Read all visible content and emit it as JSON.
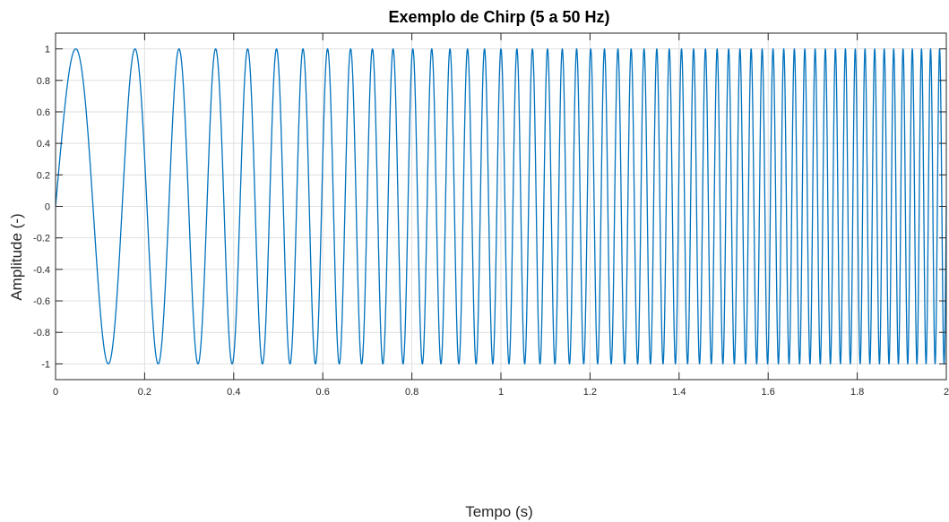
{
  "chart_data": {
    "type": "line",
    "title": "Exemplo de Chirp (5 a 50 Hz)",
    "xlabel": "Tempo (s)",
    "ylabel": "Amplitude (-)",
    "xlim": [
      0,
      2
    ],
    "ylim": [
      -1.1,
      1.1
    ],
    "grid": true,
    "x_ticks": [
      0,
      0.2,
      0.4,
      0.6,
      0.8,
      1,
      1.2,
      1.4,
      1.6,
      1.8,
      2
    ],
    "x_tick_labels": [
      "0",
      "0.2",
      "0.4",
      "0.6",
      "0.8",
      "1",
      "1.2",
      "1.4",
      "1.6",
      "1.8",
      "2"
    ],
    "y_ticks": [
      1,
      0.8,
      0.6,
      0.4,
      0.2,
      0,
      -0.2,
      -0.4,
      -0.6,
      -0.8,
      -1
    ],
    "y_tick_labels": [
      "1",
      "0.8",
      "0.6",
      "0.4",
      "0.2",
      "0",
      "-0.2",
      "-0.4",
      "-0.6",
      "-0.8",
      "-1"
    ],
    "series": [
      {
        "color": "#0072bd",
        "function": "sin",
        "f0_hz": 5,
        "f1_hz": 50,
        "t_start_s": 0,
        "t_end_s": 2,
        "amplitude": 1
      }
    ]
  }
}
